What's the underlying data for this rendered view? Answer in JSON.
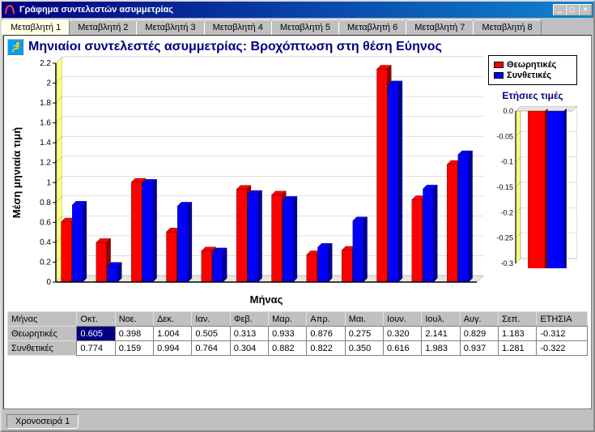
{
  "window": {
    "title": "Γράφημα συντελεστών ασυμμετρίας"
  },
  "tabs": [
    "Μεταβλητή 1",
    "Μεταβλητή 2",
    "Μεταβλητή 3",
    "Μεταβλητή 4",
    "Μεταβλητή 5",
    "Μεταβλητή 6",
    "Μεταβλητή 7",
    "Μεταβλητή 8"
  ],
  "active_tab": 0,
  "chart": {
    "title": "Μηνιαίοι συντελεστές ασυμμετρίας: Βροχόπτωση στη θέση Εύηνος",
    "type": "bar",
    "categories": [
      "Οκτ.",
      "Νοε.",
      "Δεκ.",
      "Ιαν.",
      "Φεβ.",
      "Μαρ.",
      "Απρ.",
      "Μαι.",
      "Ιουν.",
      "Ιουλ.",
      "Αυγ.",
      "Σεπ."
    ],
    "series": [
      {
        "name": "Θεωρητικές",
        "color": "#ff0000",
        "values": [
          0.605,
          0.398,
          1.004,
          0.505,
          0.313,
          0.933,
          0.876,
          0.275,
          0.32,
          2.141,
          0.829,
          1.183
        ]
      },
      {
        "name": "Συνθετικές",
        "color": "#0000ff",
        "values": [
          0.774,
          0.159,
          0.994,
          0.764,
          0.304,
          0.882,
          0.822,
          0.35,
          0.616,
          1.983,
          0.937,
          1.281
        ]
      }
    ],
    "xlabel": "Μήνας",
    "ylabel": "Μέση μηνιαία τιμή",
    "ylim": [
      0,
      2.2
    ],
    "ytick_step": 0.2,
    "grid_color": "#c0c0c0",
    "background": "#ffffff",
    "plot_bg": "#ffffe0",
    "axis_color": "#000000",
    "left_wall_color": "#ffff80"
  },
  "mini_chart": {
    "title": "Ετήσιες τιμές",
    "ylim": [
      -0.3,
      0
    ],
    "ytick_step": 0.05,
    "series": [
      {
        "color": "#ff0000",
        "value": -0.312
      },
      {
        "color": "#0000ff",
        "value": -0.322
      }
    ]
  },
  "table": {
    "row_header": "Μήνας",
    "col_headers": [
      "Οκτ.",
      "Νοε.",
      "Δεκ.",
      "Ιαν.",
      "Φεβ.",
      "Μαρ.",
      "Απρ.",
      "Μαι.",
      "Ιουν.",
      "Ιουλ.",
      "Αυγ.",
      "Σεπ.",
      "ΕΤΗΣΙΑ"
    ],
    "rows": [
      {
        "label": "Θεωρητικές",
        "values": [
          "0.605",
          "0.398",
          "1.004",
          "0.505",
          "0.313",
          "0.933",
          "0.876",
          "0.275",
          "0.320",
          "2.141",
          "0.829",
          "1.183",
          "-0.312"
        ]
      },
      {
        "label": "Συνθετικές",
        "values": [
          "0.774",
          "0.159",
          "0.994",
          "0.764",
          "0.304",
          "0.882",
          "0.822",
          "0.350",
          "0.616",
          "1.983",
          "0.937",
          "1.281",
          "-0.322"
        ]
      }
    ],
    "selected": {
      "row": 0,
      "col": 0
    }
  },
  "bottom_tab": "Χρονοσειρά 1",
  "legend_labels": [
    "Θεωρητικές",
    "Συνθετικές"
  ]
}
